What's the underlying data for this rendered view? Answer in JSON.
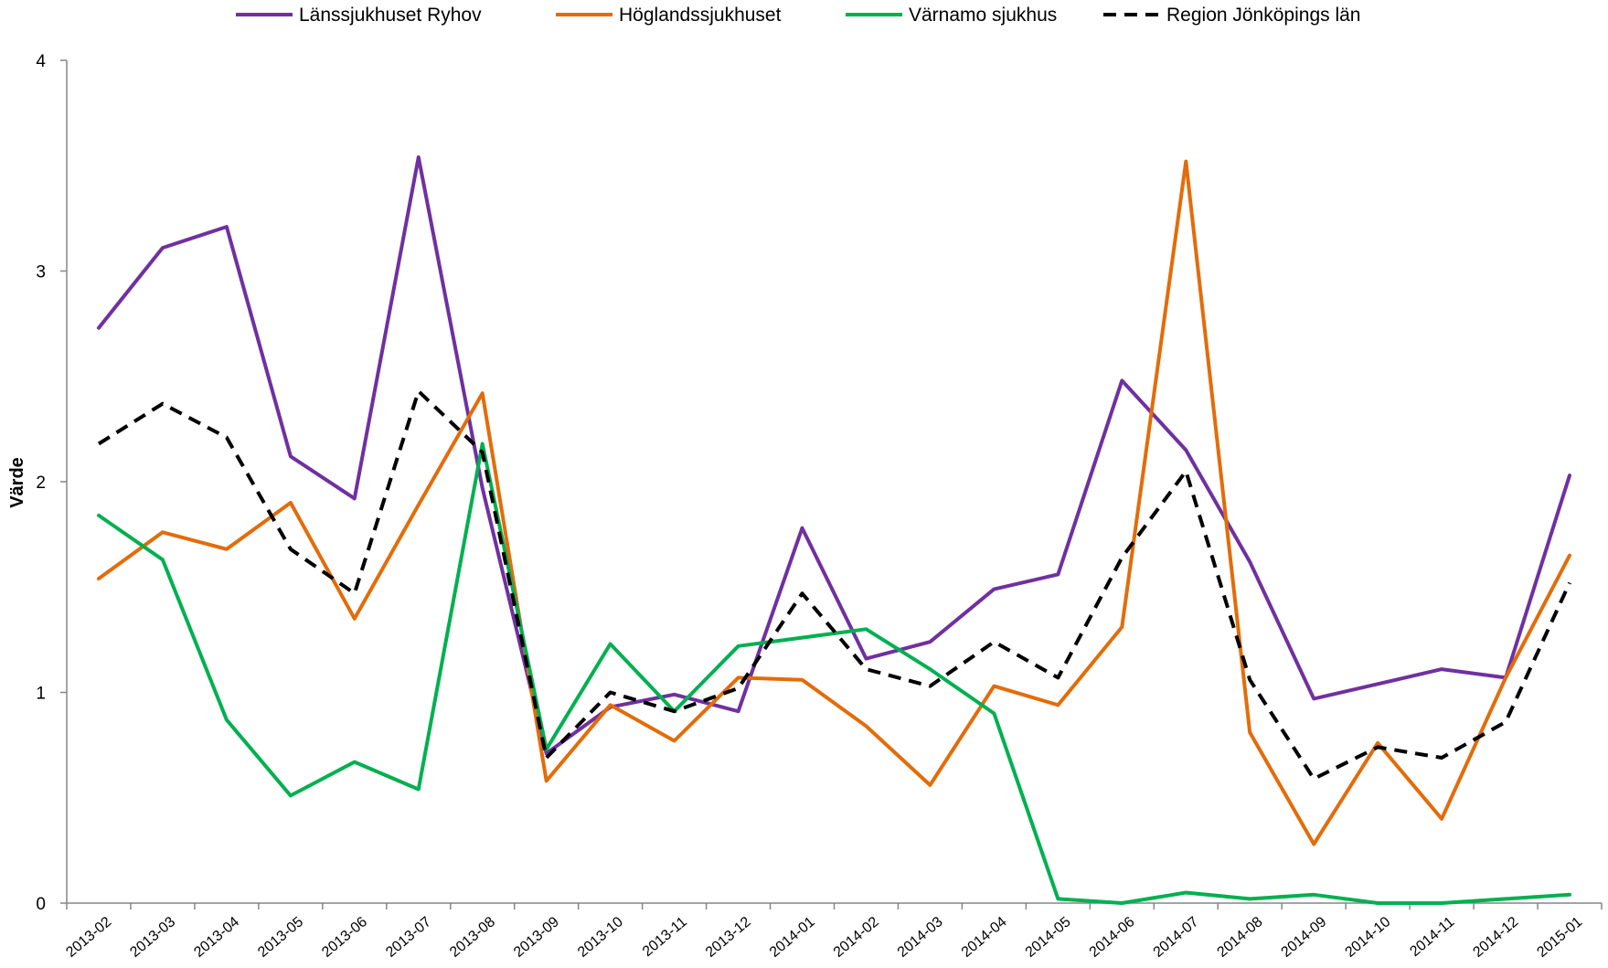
{
  "chart_data": {
    "type": "line",
    "ylabel": "Värde",
    "ylim": [
      0,
      4
    ],
    "yticks": [
      "0",
      "1",
      "2",
      "3",
      "4"
    ],
    "legend_position": "top",
    "grid": false,
    "x": [
      "2013-02",
      "2013-03",
      "2013-04",
      "2013-05",
      "2013-06",
      "2013-07",
      "2013-08",
      "2013-09",
      "2013-10",
      "2013-11",
      "2013-12",
      "2014-01",
      "2014-02",
      "2014-03",
      "2014-04",
      "2014-05",
      "2014-06",
      "2014-07",
      "2014-08",
      "2014-09",
      "2014-10",
      "2014-11",
      "2014-12",
      "2015-01"
    ],
    "series": [
      {
        "name": "Länssjukhuset Ryhov",
        "color": "#7030a0",
        "dash": false,
        "values": [
          2.73,
          3.11,
          3.21,
          2.12,
          1.92,
          3.54,
          1.97,
          0.71,
          0.93,
          0.99,
          0.91,
          1.78,
          1.16,
          1.24,
          1.49,
          1.56,
          2.48,
          2.15,
          1.62,
          0.97,
          1.04,
          1.11,
          1.07,
          2.03
        ]
      },
      {
        "name": "Höglandssjukhuset",
        "color": "#e36c09",
        "dash": false,
        "values": [
          1.54,
          1.76,
          1.68,
          1.9,
          1.35,
          1.89,
          2.42,
          0.58,
          0.94,
          0.77,
          1.07,
          1.06,
          0.84,
          0.56,
          1.03,
          0.94,
          1.31,
          3.52,
          0.81,
          0.28,
          0.76,
          0.4,
          1.07,
          1.65
        ]
      },
      {
        "name": "Värnamo sjukhus",
        "color": "#00b050",
        "dash": false,
        "values": [
          1.84,
          1.63,
          0.87,
          0.51,
          0.67,
          0.54,
          2.18,
          0.73,
          1.23,
          0.91,
          1.22,
          1.26,
          1.3,
          1.11,
          0.9,
          0.02,
          0.0,
          0.05,
          0.02,
          0.04,
          0.0,
          0.0,
          0.02,
          0.04
        ]
      },
      {
        "name": "Region Jönköpings län",
        "color": "#000000",
        "dash": true,
        "values": [
          2.18,
          2.37,
          2.21,
          1.68,
          1.47,
          2.43,
          2.14,
          0.69,
          1.0,
          0.91,
          1.02,
          1.47,
          1.11,
          1.03,
          1.24,
          1.07,
          1.64,
          2.05,
          1.06,
          0.59,
          0.74,
          0.69,
          0.86,
          1.52
        ]
      }
    ]
  }
}
